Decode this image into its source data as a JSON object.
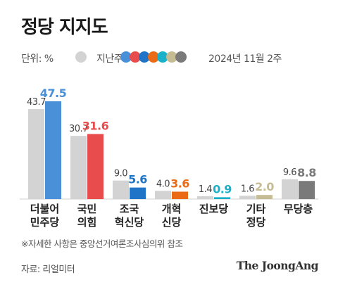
{
  "title": "정당 지지도",
  "legend": {
    "unit": "단위: %",
    "previous_label": "지난주",
    "current_label": "2024년 11월 2주",
    "previous_color": "#d3d3d3",
    "current_colors": [
      "#4a90d9",
      "#e84c4c",
      "#1f74c7",
      "#ea6a15",
      "#19b0c9",
      "#c6bc94",
      "#7a7a7a"
    ]
  },
  "note": "※자세한 사항은 중앙선거여론조사심의위 참조",
  "source": "자료: 리얼미터",
  "brand": "The JoongAng",
  "chart_data": {
    "type": "bar",
    "title": "정당 지지도",
    "unit": "%",
    "categories": [
      [
        "더불어",
        "민주당"
      ],
      [
        "국민",
        "의힘"
      ],
      [
        "조국",
        "혁신당"
      ],
      [
        "개혁",
        "신당"
      ],
      [
        "진보당"
      ],
      [
        "기타",
        "정당"
      ],
      [
        "무당층"
      ]
    ],
    "series": [
      {
        "name": "지난주",
        "values": [
          43.7,
          30.7,
          9.0,
          4.0,
          1.4,
          1.6,
          9.6
        ]
      },
      {
        "name": "2024년 11월 2주",
        "values": [
          47.5,
          31.6,
          5.6,
          3.6,
          0.9,
          2.0,
          8.8
        ]
      }
    ],
    "current_colors": [
      "#4a90d9",
      "#e84c4c",
      "#1f74c7",
      "#ea6a15",
      "#19b0c9",
      "#c6bc94",
      "#7a7a7a"
    ],
    "previous_color": "#d3d3d3",
    "current_label_colors": [
      "#4a90d9",
      "#e84c4c",
      "#1f74c7",
      "#ea6a15",
      "#19b0c9",
      "#c6bc94",
      "#7a7a7a"
    ],
    "ylim": [
      0,
      50
    ],
    "grid": false
  }
}
